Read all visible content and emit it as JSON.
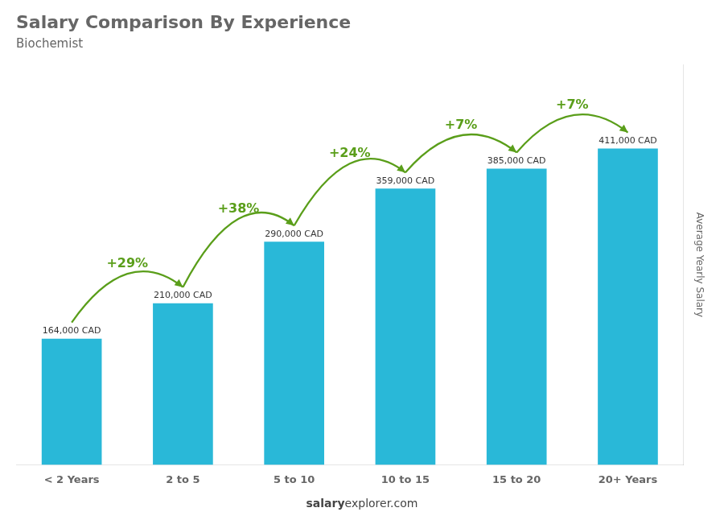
{
  "chart_data": {
    "type": "bar",
    "title": "Salary Comparison By Experience",
    "subtitle": "Biochemist",
    "categories": [
      "< 2 Years",
      "2 to 5",
      "5 to 10",
      "10 to 15",
      "15 to 20",
      "20+ Years"
    ],
    "values": [
      164000,
      210000,
      290000,
      359000,
      385000,
      411000
    ],
    "value_labels": [
      "164,000 CAD",
      "210,000 CAD",
      "290,000 CAD",
      "359,000 CAD",
      "385,000 CAD",
      "411,000 CAD"
    ],
    "color": "#29b8d8",
    "ylabel": "Average Yearly Salary",
    "ylim": [
      0,
      520000
    ],
    "yticks": [],
    "tick_labels": "x",
    "grid": false,
    "annotations": [
      {
        "from": "< 2 Years",
        "to": "2 to 5",
        "text": "+29%"
      },
      {
        "from": "2 to 5",
        "to": "5 to 10",
        "text": "+38%"
      },
      {
        "from": "5 to 10",
        "to": "10 to 15",
        "text": "+24%"
      },
      {
        "from": "10 to 15",
        "to": "15 to 20",
        "text": "+7%"
      },
      {
        "from": "15 to 20",
        "to": "20+ Years",
        "text": "+7%"
      }
    ],
    "footer": [
      "salary",
      "explorer.com"
    ]
  }
}
